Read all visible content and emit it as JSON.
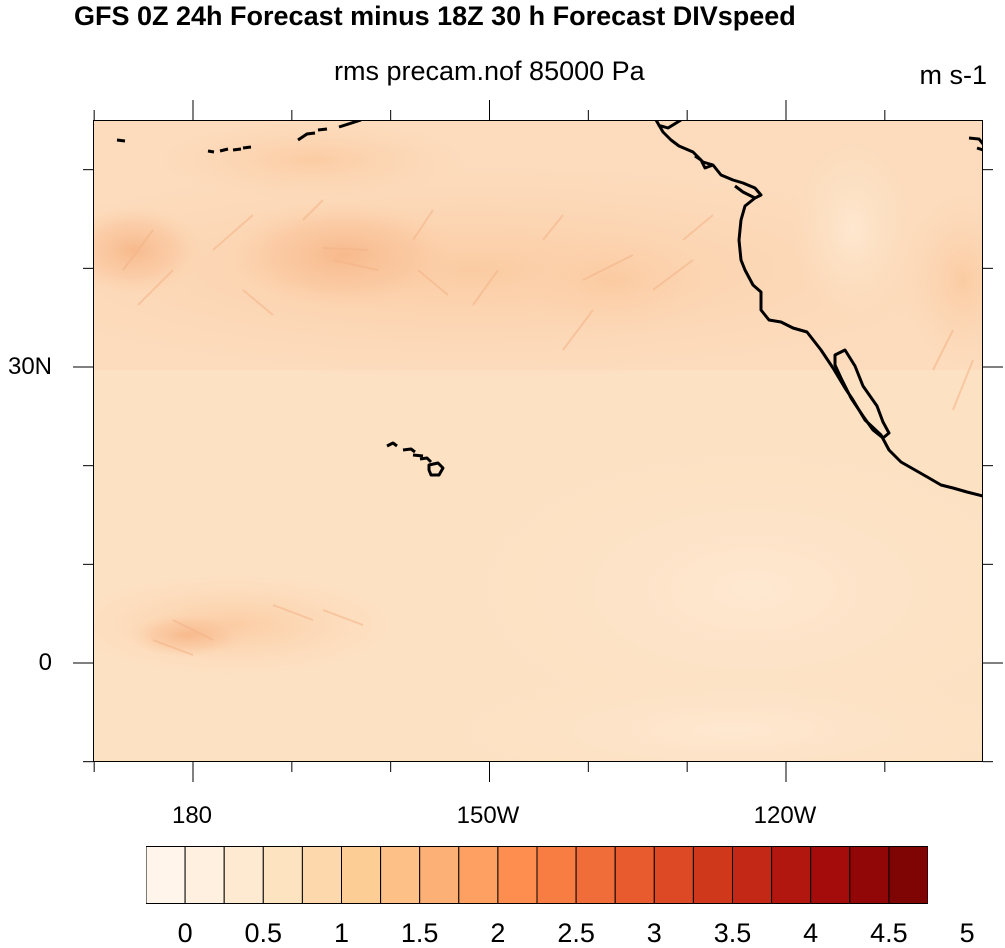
{
  "figure": {
    "title": "GFS 0Z 24h Forecast minus 18Z 30 h Forecast DIVspeed",
    "subtitle": "rms precam.nof 85000 Pa",
    "units": "m s-1"
  },
  "map": {
    "region": "North-east Pacific Ocean",
    "features": [
      "Hawaiian Islands",
      "North American west coast",
      "Baja California"
    ],
    "lat_ticks": [
      {
        "lat": 30,
        "label": "30N"
      },
      {
        "lat": 0,
        "label": "0"
      }
    ],
    "lon_ticks": [
      {
        "lon": 180,
        "label": "180"
      },
      {
        "lon": -150,
        "label": "150W"
      },
      {
        "lon": -120,
        "label": "120W"
      }
    ],
    "extent": {
      "lon_min": 170,
      "lon_max": -110,
      "lat_min": -10,
      "lat_max": 55
    },
    "field_description": "RMS divergent wind speed difference, mostly 0.5–2 m s-1 with maxima near 35–45N and near 5N west of 160W"
  },
  "colorbar": {
    "levels": [
      "0",
      "0.5",
      "1",
      "1.5",
      "2",
      "2.5",
      "3",
      "3.5",
      "4",
      "4.5",
      "5"
    ],
    "colors": [
      "#fff5eb",
      "#fff0e0",
      "#feead1",
      "#fee3c1",
      "#fdd8ac",
      "#fdcd96",
      "#fdc086",
      "#fdb075",
      "#fda061",
      "#fd8e4f",
      "#f77d42",
      "#f06c38",
      "#e75b2e",
      "#dc4924",
      "#d0381b",
      "#c22815",
      "#b1170f",
      "#a30c0b",
      "#910707",
      "#7f0404"
    ]
  }
}
